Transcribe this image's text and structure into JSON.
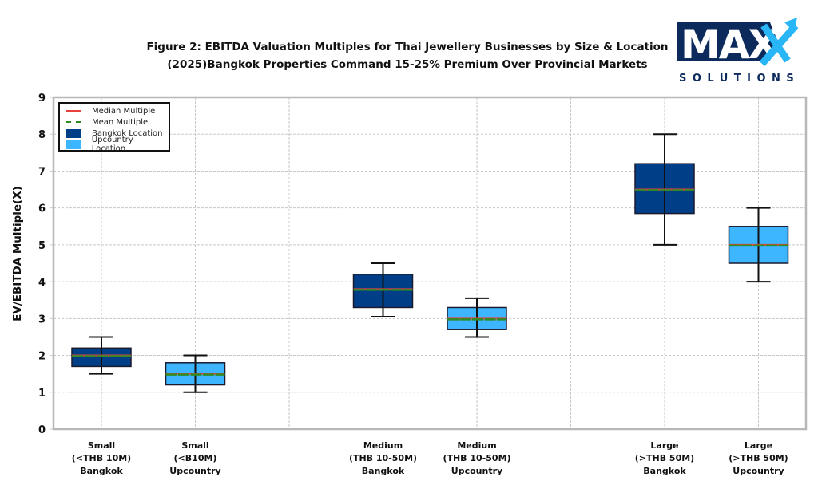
{
  "chart_data": {
    "type": "boxplot",
    "title": "Figure 2: EBITDA Valuation Multiples for Thai Jewellery Businesses by Size & Location",
    "subtitle": "(2025)Bangkok Properties Command 15-25% Premium Over Provincial Markets",
    "xlabel": "",
    "ylabel": "EV/EBITDA Multiple(X)",
    "ylim": [
      0,
      9
    ],
    "yticks": [
      "0",
      "1",
      "2",
      "3",
      "4",
      "5",
      "6",
      "7",
      "8",
      "9"
    ],
    "grid": true,
    "legend_position": "top-left",
    "legend": [
      {
        "label": "Median Multiple",
        "kind": "line-solid",
        "color": "#e8413c"
      },
      {
        "label": "Mean Multiple",
        "kind": "line-dashed",
        "color": "#2e8b22"
      },
      {
        "label": "Bangkok Location",
        "kind": "box",
        "color": "#003f87"
      },
      {
        "label": "Upcountry Location",
        "kind": "box",
        "color": "#3db5ff"
      }
    ],
    "x_positions": 8,
    "series": [
      {
        "name": "Small (<THB 10M) Bangkok",
        "position": 1,
        "location": "Bangkok",
        "label_lines": [
          "Small",
          "(<THB 10M)",
          "Bangkok"
        ],
        "whisker_low": 1.5,
        "q1": 1.7,
        "median": 2.0,
        "mean": 2.0,
        "q3": 2.2,
        "whisker_high": 2.5
      },
      {
        "name": "Small (<B10M) Upcountry",
        "position": 2,
        "location": "Upcountry",
        "label_lines": [
          "Small",
          "(<B10M)",
          "Upcountry"
        ],
        "whisker_low": 1.0,
        "q1": 1.2,
        "median": 1.5,
        "mean": 1.5,
        "q3": 1.8,
        "whisker_high": 2.0
      },
      {
        "name": "Medium (THB 10-50M) Bangkok",
        "position": 4,
        "location": "Bangkok",
        "label_lines": [
          "Medium",
          "(THB 10-50M)",
          "Bangkok"
        ],
        "whisker_low": 3.05,
        "q1": 3.3,
        "median": 3.8,
        "mean": 3.8,
        "q3": 4.2,
        "whisker_high": 4.5
      },
      {
        "name": "Medium (THB 10-50M) Upcountry",
        "position": 5,
        "location": "Upcountry",
        "label_lines": [
          "Medium",
          "(THB 10-50M)",
          "Upcountry"
        ],
        "whisker_low": 2.5,
        "q1": 2.7,
        "median": 3.0,
        "mean": 3.0,
        "q3": 3.3,
        "whisker_high": 3.55
      },
      {
        "name": "Large (>THB 50M) Bangkok",
        "position": 7,
        "location": "Bangkok",
        "label_lines": [
          "Large",
          "(>THB 50M)",
          "Bangkok"
        ],
        "whisker_low": 5.0,
        "q1": 5.85,
        "median": 6.5,
        "mean": 6.5,
        "q3": 7.2,
        "whisker_high": 8.0
      },
      {
        "name": "Large (>THB 50M) Upcountry",
        "position": 8,
        "location": "Upcountry",
        "label_lines": [
          "Large",
          "(>THB 50M)",
          "Upcountry"
        ],
        "whisker_low": 4.0,
        "q1": 4.5,
        "median": 5.0,
        "mean": 5.0,
        "q3": 5.5,
        "whisker_high": 6.0
      }
    ]
  },
  "logo": {
    "main_text": "MAX",
    "sub_text": "SOLUTIONS",
    "primary_color": "#0c2a5c",
    "accent_color": "#29b6f6"
  },
  "colors": {
    "bangkok": "#003f87",
    "upcountry": "#3db5ff",
    "median": "#e8413c",
    "mean": "#2e8b22",
    "grid": "#c8c8c8",
    "frame": "#b8b8b8"
  }
}
